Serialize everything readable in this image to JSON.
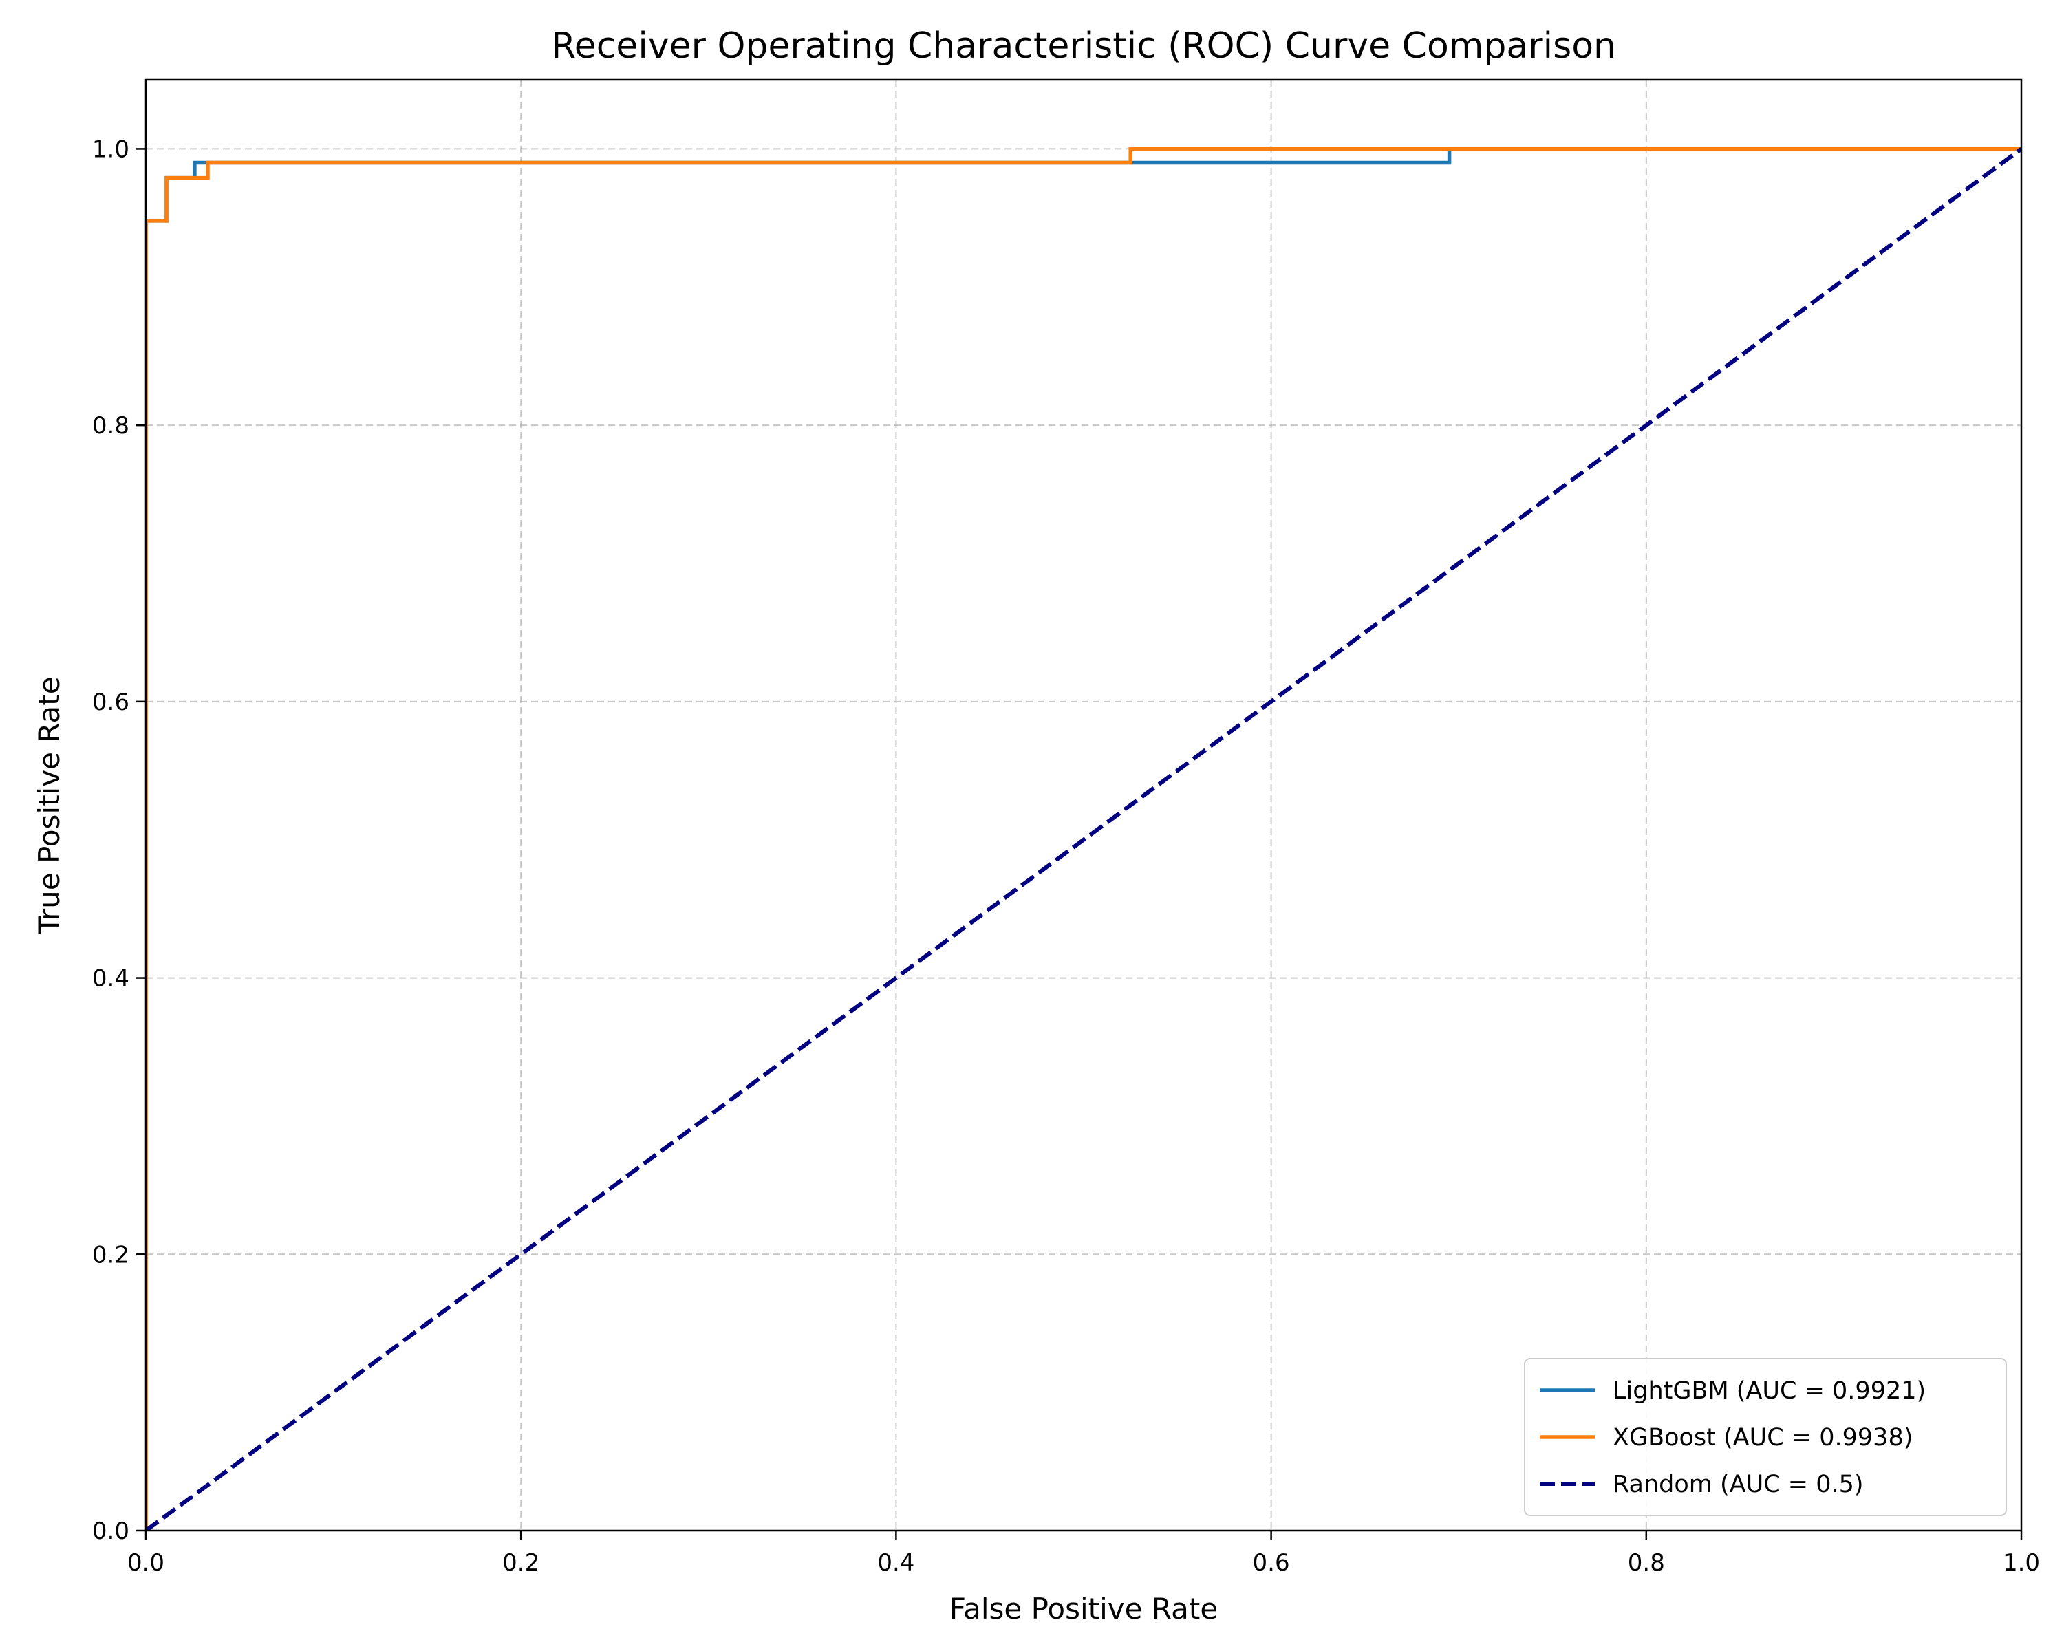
{
  "chart_data": {
    "type": "line",
    "title": "Receiver Operating Characteristic (ROC) Curve Comparison",
    "xlabel": "False Positive Rate",
    "ylabel": "True Positive Rate",
    "xlim": [
      0.0,
      1.0
    ],
    "ylim": [
      0.0,
      1.05
    ],
    "x_ticks": [
      "0.0",
      "0.2",
      "0.4",
      "0.6",
      "0.8",
      "1.0"
    ],
    "y_ticks": [
      "0.0",
      "0.2",
      "0.4",
      "0.6",
      "0.8",
      "1.0"
    ],
    "grid": true,
    "legend_position": "lower-right",
    "series": [
      {
        "name": "LightGBM (AUC = 0.9921)",
        "color": "#1f77b4",
        "style": "solid",
        "x": [
          0.0,
          0.0,
          0.0,
          0.011,
          0.011,
          0.026,
          0.026,
          0.695,
          0.695,
          1.0
        ],
        "y": [
          0.0,
          0.948,
          0.948,
          0.948,
          0.979,
          0.979,
          0.99,
          0.99,
          1.0,
          1.0
        ]
      },
      {
        "name": "XGBoost (AUC = 0.9938)",
        "color": "#ff7f0e",
        "style": "solid",
        "x": [
          0.0,
          0.0,
          0.011,
          0.011,
          0.033,
          0.033,
          0.525,
          0.525,
          1.0
        ],
        "y": [
          0.0,
          0.948,
          0.948,
          0.979,
          0.979,
          0.99,
          0.99,
          1.0,
          1.0
        ]
      },
      {
        "name": "Random (AUC = 0.5)",
        "color": "#000080",
        "style": "dashed",
        "x": [
          0.0,
          1.0
        ],
        "y": [
          0.0,
          1.0
        ]
      }
    ]
  }
}
